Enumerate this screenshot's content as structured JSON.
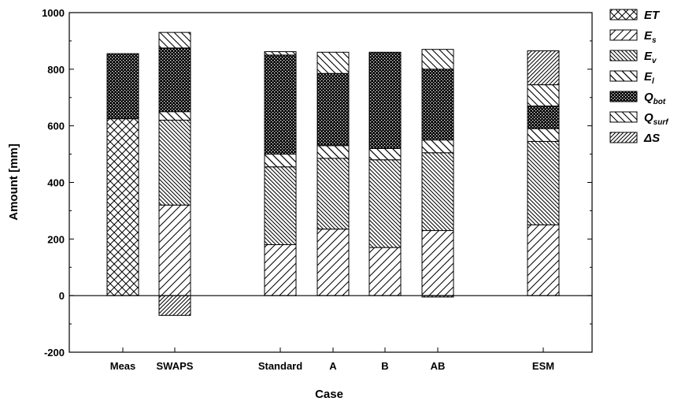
{
  "chart_data": {
    "type": "bar",
    "stacked": true,
    "xlabel": "Case",
    "ylabel": "Amount [mm]",
    "ylim": [
      -200,
      1000
    ],
    "yticks": [
      -200,
      0,
      200,
      400,
      600,
      800,
      1000
    ],
    "categories": [
      "Meas",
      "SWAPS",
      "Standard",
      "A",
      "B",
      "AB",
      "ESM"
    ],
    "series": [
      {
        "name": "ET",
        "main": "E",
        "sub": "T",
        "subscript": false,
        "pattern": "crosshatch",
        "values": [
          625,
          0,
          0,
          0,
          0,
          0,
          0
        ]
      },
      {
        "name": "Es",
        "main": "E",
        "sub": "s",
        "subscript": true,
        "pattern": "diag-wide",
        "values": [
          0,
          320,
          180,
          235,
          170,
          230,
          250
        ]
      },
      {
        "name": "Ev",
        "main": "E",
        "sub": "v",
        "subscript": true,
        "pattern": "back-dense",
        "values": [
          0,
          300,
          275,
          250,
          310,
          275,
          295
        ]
      },
      {
        "name": "El",
        "main": "E",
        "sub": "l",
        "subscript": true,
        "pattern": "back-wide",
        "values": [
          0,
          30,
          45,
          45,
          40,
          45,
          45
        ]
      },
      {
        "name": "Qbot",
        "main": "Q",
        "sub": "bot",
        "subscript": true,
        "pattern": "dots",
        "values": [
          230,
          225,
          350,
          255,
          340,
          250,
          80
        ]
      },
      {
        "name": "Qsurf",
        "main": "Q",
        "sub": "surf",
        "subscript": true,
        "pattern": "back-wide2",
        "values": [
          0,
          55,
          12,
          75,
          0,
          70,
          75
        ]
      },
      {
        "name": "ΔS",
        "main": "ΔS",
        "sub": "",
        "subscript": false,
        "pattern": "diag-dense",
        "values": [
          0,
          -70,
          0,
          0,
          0,
          -5,
          120
        ]
      }
    ],
    "legend_position": "right",
    "grid": false
  }
}
